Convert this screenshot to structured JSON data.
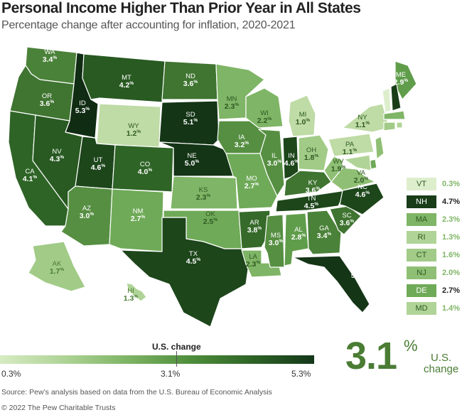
{
  "title": "Personal Income Higher Than Prior Year in All States",
  "subtitle": "Percentage change after accounting for inflation, 2020-2021",
  "percent_sign": "%",
  "colors": {
    "c03": "#ddeecd",
    "c10": "#bfdba6",
    "c13": "#b0d497",
    "c16": "#a1cb87",
    "c19": "#8fbf74",
    "c22": "#7fb566",
    "c25": "#6faa58",
    "c28": "#609d4b",
    "c30": "#568f42",
    "c33": "#4b8239",
    "c36": "#3f7431",
    "c38": "#366a2a",
    "c40": "#2e6426",
    "c42": "#285a22",
    "c45": "#1d461b",
    "c47": "#183d18",
    "c50": "#143516",
    "c53": "#102c13"
  },
  "states": {
    "WA": "3.4",
    "OR": "3.6",
    "CA": "4.1",
    "ID": "5.3",
    "NV": "4.3",
    "MT": "4.2",
    "WY": "1.2",
    "UT": "4.6",
    "AZ": "3.0",
    "CO": "4.0",
    "NM": "2.7",
    "ND": "3.6",
    "SD": "5.1",
    "NE": "5.0",
    "KS": "2.3",
    "OK": "2.5",
    "TX": "4.5",
    "MN": "2.3",
    "IA": "3.2",
    "MO": "2.7",
    "AR": "3.8",
    "LA": "2.3",
    "WI": "2.2",
    "IL": "3.0",
    "MS": "3.0",
    "MI": "1.0",
    "IN": "4.6",
    "OH": "1.8",
    "KY": "3.6",
    "TN": "4.5",
    "AL": "2.8",
    "GA": "3.4",
    "FL": "5.0",
    "SC": "3.6",
    "NC": "4.6",
    "VA": "2.0",
    "WV": "1.9",
    "PA": "1.1",
    "NY": "1.1",
    "ME": "2.9",
    "AK": "1.7",
    "HI": "1.3"
  },
  "legend": [
    {
      "state": "VT",
      "value": "0.3%"
    },
    {
      "state": "NH",
      "value": "4.7%"
    },
    {
      "state": "MA",
      "value": "2.3%"
    },
    {
      "state": "RI",
      "value": "1.3%"
    },
    {
      "state": "CT",
      "value": "1.6%"
    },
    {
      "state": "NJ",
      "value": "2.0%"
    },
    {
      "state": "DE",
      "value": "2.7%"
    },
    {
      "state": "MD",
      "value": "1.4%"
    }
  ],
  "scale": {
    "title": "U.S. change",
    "min_label": "0.3%",
    "mid_label": "3.1%",
    "max_label": "5.3%",
    "min": 0.3,
    "mid": 3.1,
    "max": 5.3
  },
  "us_change": {
    "value": "3.1",
    "suffix": "%",
    "label_line1": "U.S.",
    "label_line2": "change"
  },
  "source": "Source: Pew’s analysis based on data from the U.S. Bureau of Economic Analysis",
  "copyright": "© 2022 The Pew Charitable Trusts"
}
